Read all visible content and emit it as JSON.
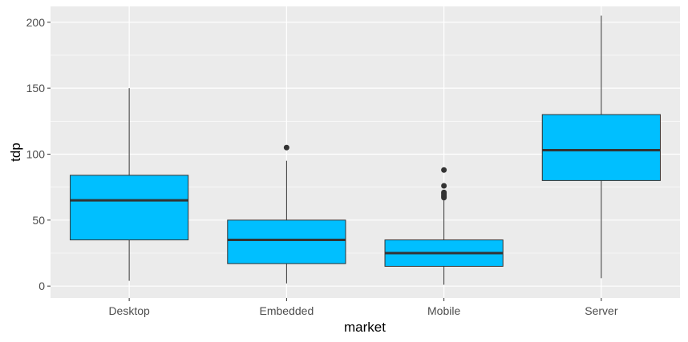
{
  "chart_data": {
    "type": "boxplot",
    "xlabel": "market",
    "ylabel": "tdp",
    "ylim": [
      -9,
      212
    ],
    "y_ticks": [
      0,
      50,
      100,
      150,
      200
    ],
    "y_tick_labels": [
      "0",
      "50",
      "100",
      "150",
      "200"
    ],
    "categories": [
      "Desktop",
      "Embedded",
      "Mobile",
      "Server"
    ],
    "boxes": [
      {
        "category": "Desktop",
        "whisker_low": 4,
        "q1": 35,
        "median": 65,
        "q3": 84,
        "whisker_high": 150,
        "outliers": []
      },
      {
        "category": "Embedded",
        "whisker_low": 2,
        "q1": 17,
        "median": 35,
        "q3": 50,
        "whisker_high": 95,
        "outliers": [
          105
        ]
      },
      {
        "category": "Mobile",
        "whisker_low": 1,
        "q1": 15,
        "median": 25,
        "q3": 35,
        "whisker_high": 65,
        "outliers": [
          67,
          68,
          69,
          70,
          71,
          76,
          88
        ]
      },
      {
        "category": "Server",
        "whisker_low": 6,
        "q1": 80,
        "median": 103,
        "q3": 130,
        "whisker_high": 205,
        "outliers": []
      }
    ],
    "grid": true,
    "colors": {
      "panel_background": "#ebebeb",
      "grid_major": "#ffffff",
      "box_fill": "#00bfff",
      "box_outline": "#333333",
      "median": "#333333",
      "outlier": "#333333"
    }
  }
}
